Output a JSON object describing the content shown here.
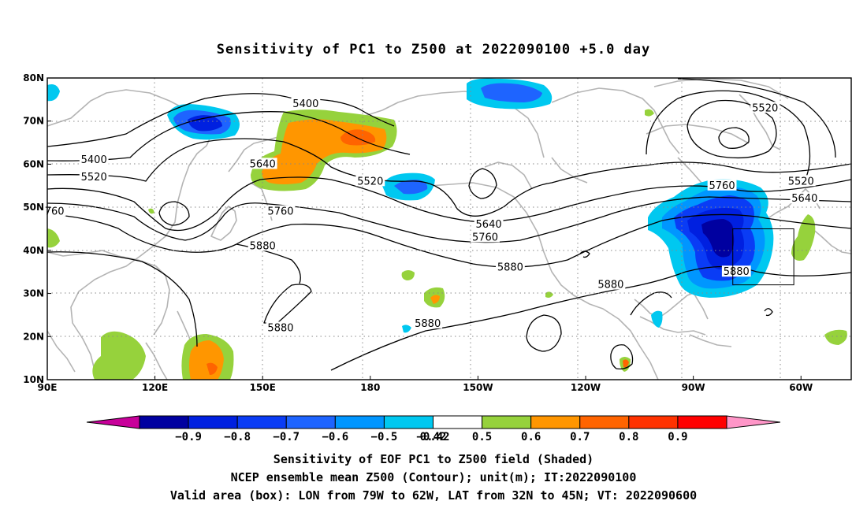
{
  "title": "Sensitivity of PC1 to Z500 at 2022090100 +5.0 day",
  "map": {
    "lon_labels": [
      "90E",
      "120E",
      "150E",
      "180",
      "150W",
      "120W",
      "90W",
      "60W"
    ],
    "lat_labels": [
      "80N",
      "70N",
      "60N",
      "50N",
      "40N",
      "30N",
      "20N",
      "10N"
    ],
    "lon_values": [
      90,
      120,
      150,
      180,
      210,
      240,
      270,
      300
    ],
    "lat_values": [
      80,
      70,
      60,
      50,
      40,
      30,
      20,
      10
    ],
    "lon_range": [
      90,
      314
    ],
    "lat_range": [
      10,
      80
    ],
    "grid": "dotted"
  },
  "valid_box": {
    "lon_west": -79,
    "lon_east": -62,
    "lat_south": 32,
    "lat_north": 45
  },
  "contour_labels": [
    {
      "text": "5400",
      "lon": 162,
      "lat": 74
    },
    {
      "text": "5400",
      "lon": 103,
      "lat": 61
    },
    {
      "text": "5520",
      "lon": 103,
      "lat": 57
    },
    {
      "text": "760",
      "lon": 92,
      "lat": 49
    },
    {
      "text": "5640",
      "lon": 150,
      "lat": 60
    },
    {
      "text": "5520",
      "lon": 180,
      "lat": 56
    },
    {
      "text": "5760",
      "lon": 155,
      "lat": 49
    },
    {
      "text": "5880",
      "lon": 150,
      "lat": 41
    },
    {
      "text": "5640",
      "lon": 213,
      "lat": 46
    },
    {
      "text": "5760",
      "lon": 212,
      "lat": 43
    },
    {
      "text": "5880",
      "lon": 219,
      "lat": 36
    },
    {
      "text": "5880",
      "lon": 247,
      "lat": 32
    },
    {
      "text": "5880",
      "lon": 155,
      "lat": 22
    },
    {
      "text": "5880",
      "lon": 196,
      "lat": 23
    },
    {
      "text": "5520",
      "lon": 290,
      "lat": 73
    },
    {
      "text": "5520",
      "lon": 300,
      "lat": 56
    },
    {
      "text": "5640",
      "lon": 301,
      "lat": 52
    },
    {
      "text": "5760",
      "lon": 278,
      "lat": 55
    },
    {
      "text": "5880",
      "lon": 282,
      "lat": 35
    }
  ],
  "colorbar": {
    "labels": [
      "−0.9",
      "−0.8",
      "−0.7",
      "−0.6",
      "−0.5",
      "−0.42",
      "0.42",
      "0.5",
      "0.6",
      "0.7",
      "0.8",
      "0.9"
    ],
    "colors": [
      "#0000a0",
      "#0020e0",
      "#0a3cf5",
      "#1e64ff",
      "#0096ff",
      "#00c8f0",
      "#ffffff",
      "#96d23c",
      "#ff9600",
      "#ff6400",
      "#ff3200",
      "#ff0000"
    ],
    "low_end": "#c8009a",
    "high_end": "#ff96c8"
  },
  "captions": [
    "Sensitivity of EOF PC1 to Z500 field (Shaded)",
    "NCEP ensemble mean Z500 (Contour); unit(m); IT:2022090100",
    "Valid area (box): LON from 79W to 62W, LAT from 32N to 45N; VT: 2022090600"
  ]
}
